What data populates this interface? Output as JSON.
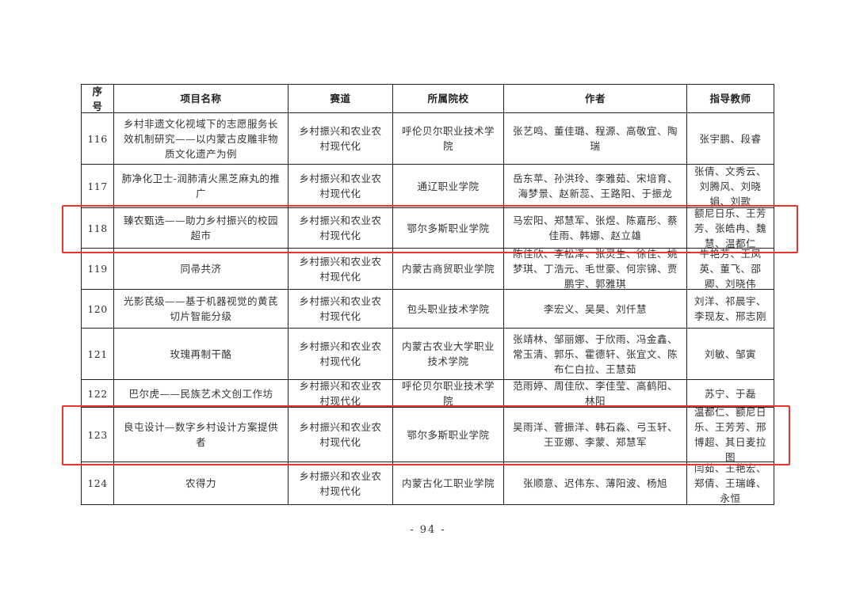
{
  "table": {
    "headers": [
      "序号",
      "项目名称",
      "赛道",
      "所属院校",
      "作者",
      "指导教师"
    ],
    "rows": [
      {
        "no": "116",
        "name": "乡村非遗文化视域下的志愿服务长效机制研究——以内蒙古皮雕非物质文化遗产为例",
        "track": "乡村振兴和农业农村现代化",
        "school": "呼伦贝尔职业技术学院",
        "authors": "张艺鸣、董佳璐、程源、高敬宜、陶瑞",
        "advisors": "张宇鹏、段睿",
        "highlighted": false
      },
      {
        "no": "117",
        "name": "肺净化卫士-润肺清火黑芝麻丸的推广",
        "track": "乡村振兴和农业农村现代化",
        "school": "通辽职业学院",
        "authors": "岳东苹、孙洪玲、李雅茹、宋培育、海梦景、赵新蕊、王路阳、于振龙",
        "advisors": "张倩、文秀云、刘腾风、刘晓娟、刘歌",
        "highlighted": false
      },
      {
        "no": "118",
        "name": "臻农甄选——助力乡村振兴的校园超市",
        "track": "乡村振兴和农业农村现代化",
        "school": "鄂尔多斯职业学院",
        "authors": "马宏阳、郑慧军、张煜、陈嘉彤、蔡佳雨、韩娜、赵立雄",
        "advisors": "额尼日乐、王芳芳、张皓冉、魏慧、温都仁",
        "highlighted": true
      },
      {
        "no": "119",
        "name": "同帚共济",
        "track": "乡村振兴和农业农村现代化",
        "school": "内蒙古商贸职业学院",
        "authors": "陈佳欣、李松泽、张灵生、徐佳、姚梦琪、丁浩元、毛世豪、何宗锦、贾鹏宇、郭雅琪",
        "advisors": "牛艳芳、王凤英、董飞、邵卿、刘晓伟",
        "highlighted": false
      },
      {
        "no": "120",
        "name": "光影芪级——基于机器视觉的黄芪切片智能分级",
        "track": "乡村振兴和农业农村现代化",
        "school": "包头职业技术学院",
        "authors": "李宏义、吴昊、刘仟慧",
        "advisors": "刘洋、祁晨宇、李现友、邢志刚",
        "highlighted": false
      },
      {
        "no": "121",
        "name": "玫瑰再制干酪",
        "track": "乡村振兴和农业农村现代化",
        "school": "内蒙古农业大学职业技术学院",
        "authors": "张靖林、邹丽娜、于欣雨、冯金鑫、常玉清、郭乐、霍德轩、张宜文、陈布仁白拉、王慧茹",
        "advisors": "刘敏、邹寅",
        "highlighted": false
      },
      {
        "no": "122",
        "name": "巴尔虎——民族艺术文创工作坊",
        "track": "乡村振兴和农业农村现代化",
        "school": "呼伦贝尔职业技术学院",
        "authors": "范雨婷、周佳欣、李佳莹、高鹤阳、林阳",
        "advisors": "苏宁、于磊",
        "highlighted": false
      },
      {
        "no": "123",
        "name": "良屯设计—数字乡村设计方案提供者",
        "track": "乡村振兴和农业农村现代化",
        "school": "鄂尔多斯职业学院",
        "authors": "吴雨洋、菅振洋、韩石淼、弓玉轩、王亚娜、李蒙、郑慧军",
        "advisors": "温都仁、额尼日乐、王芳芳、邢博超、其日麦拉图",
        "highlighted": true
      },
      {
        "no": "124",
        "name": "农得力",
        "track": "乡村振兴和农业农村现代化",
        "school": "内蒙古化工职业学院",
        "authors": "张顺意、迟伟东、薄阳波、杨旭",
        "advisors": "闫茹、王艳宏、郑倩、王瑞峰、永恒",
        "highlighted": false
      }
    ]
  },
  "highlight_color": "#e8342f",
  "page_number": "- 94 -"
}
